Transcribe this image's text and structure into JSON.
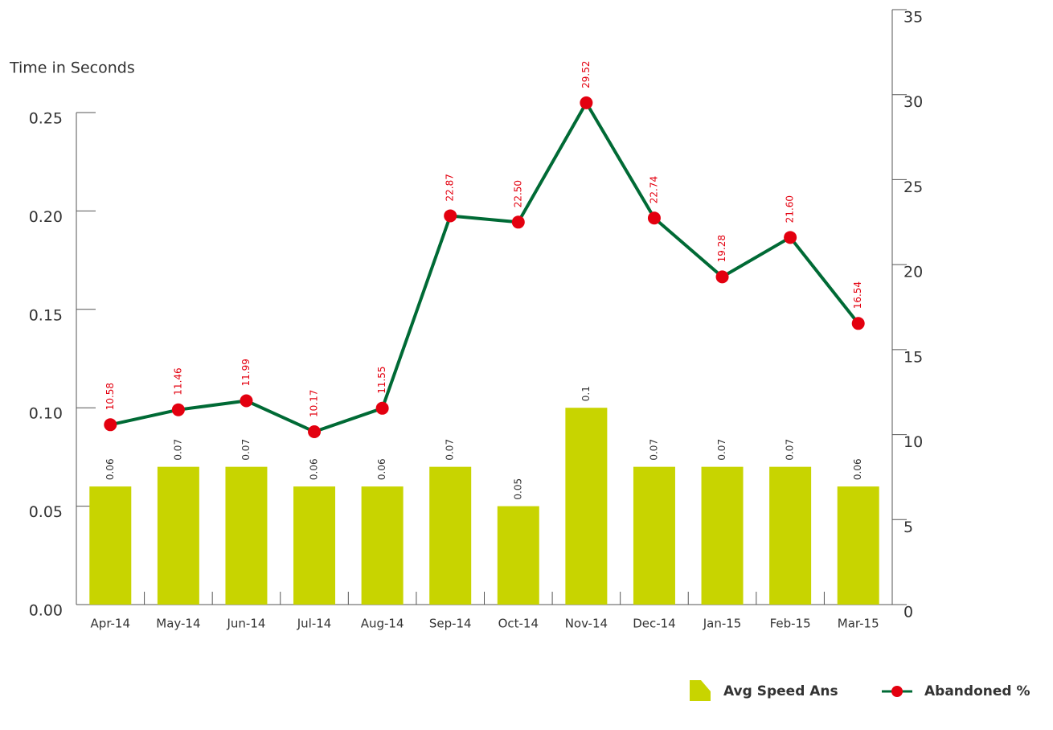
{
  "chart_data": {
    "type": "combo",
    "y_label": "Time in Seconds",
    "categories": [
      "Apr-14",
      "May-14",
      "Jun-14",
      "Jul-14",
      "Aug-14",
      "Sep-14",
      "Oct-14",
      "Nov-14",
      "Dec-14",
      "Jan-15",
      "Feb-15",
      "Mar-15"
    ],
    "ylim": [
      0,
      0.25
    ],
    "yticks": [
      {
        "value": 0,
        "label": "0.00"
      },
      0.05,
      {
        "value": 0.1,
        "label": "0.10"
      },
      0.15,
      {
        "value": 0.2,
        "label": "0.20"
      },
      0.25
    ],
    "y2lim": [
      0,
      35
    ],
    "y2ticks": [
      0,
      5,
      10,
      15,
      20,
      25,
      30,
      35
    ],
    "legend": "bottom-right",
    "series": [
      {
        "name": "Avg Speed Ans",
        "type": "bar",
        "color": "#c8d400",
        "values": [
          0.06,
          0.07,
          0.07,
          0.06,
          0.06,
          0.07,
          0.05,
          0.1,
          0.07,
          0.07,
          0.07,
          0.06
        ]
      },
      {
        "name": "Abandoned %",
        "type": "line",
        "axis": "y2",
        "color": "#006a35",
        "marker_color": "#e3000f",
        "values": [
          10.58,
          11.46,
          11.99,
          10.17,
          11.55,
          22.87,
          22.5,
          29.52,
          22.74,
          19.28,
          21.6,
          16.54
        ],
        "value_labels": [
          "10.58",
          "11.46",
          "11.99",
          "10.17",
          "11.55",
          "22.87",
          "22.50",
          "29.52",
          "22.74",
          "19.28",
          "21.60",
          "16.54"
        ]
      }
    ]
  }
}
